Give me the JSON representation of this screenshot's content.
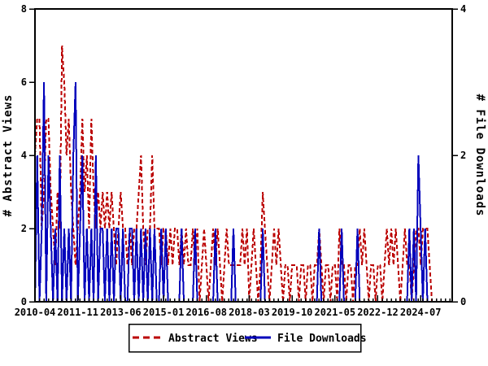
{
  "window": {
    "background": "#ffffff",
    "axis_color": "#000000"
  },
  "chart_data": {
    "type": "line",
    "title": "",
    "grid": false,
    "legend_position": "bottom-center",
    "x_axis": {
      "start_month": "2010-04",
      "end_month": "2025-09",
      "tick_labels": [
        "2010-04",
        "2011-11",
        "2013-06",
        "2015-01",
        "2016-08",
        "2018-03",
        "2019-10",
        "2021-05",
        "2022-12",
        "2024-07"
      ],
      "major_tick_interval_months": 19,
      "minor_tick_interval_months": 2
    },
    "left_axis": {
      "title": "# Abstract Views",
      "min": 0,
      "max": 8,
      "tick_values": [
        0,
        2,
        4,
        6,
        8
      ]
    },
    "right_axis": {
      "title": "# File Downloads",
      "min": 0,
      "max": 4,
      "tick_values": [
        0,
        2,
        4
      ]
    },
    "series": [
      {
        "name": "Abstract Views",
        "axis": "left",
        "color": "#bb0000",
        "line_style": "dashed",
        "values": [
          4,
          5,
          5,
          2,
          3,
          5,
          5,
          3,
          2,
          1,
          3,
          2,
          7,
          6,
          4,
          5,
          3,
          2,
          1,
          2,
          3,
          5,
          3,
          4,
          2,
          5,
          3,
          2,
          3,
          2,
          3,
          2,
          3,
          2,
          3,
          2,
          1,
          2,
          3,
          2,
          2,
          1,
          2,
          1,
          2,
          2,
          3,
          4,
          2,
          1,
          2,
          2,
          4,
          2,
          2,
          2,
          1,
          2,
          2,
          1,
          2,
          1,
          2,
          2,
          1,
          2,
          1,
          2,
          1,
          1,
          2,
          1,
          2,
          0,
          1,
          2,
          1,
          0,
          1,
          2,
          1,
          2,
          1,
          0,
          1,
          2,
          1,
          1,
          1,
          1,
          1,
          1,
          2,
          1,
          2,
          0,
          1,
          2,
          1,
          0,
          1,
          3,
          2,
          1,
          0,
          1,
          2,
          1,
          2,
          1,
          0,
          1,
          1,
          0,
          1,
          1,
          1,
          0,
          1,
          1,
          0,
          1,
          1,
          0,
          1,
          1,
          2,
          1,
          0,
          1,
          1,
          0,
          1,
          1,
          0,
          2,
          1,
          1,
          0,
          1,
          1,
          0,
          1,
          1,
          2,
          1,
          2,
          1,
          0,
          1,
          1,
          0,
          1,
          1,
          0,
          1,
          2,
          1,
          2,
          1,
          2,
          1,
          0,
          1,
          2,
          1,
          1,
          0,
          1,
          2,
          2,
          1,
          2,
          2,
          2,
          1,
          0,
          0,
          0,
          0,
          0,
          0,
          0,
          0,
          0,
          0
        ]
      },
      {
        "name": "File Downloads",
        "axis": "right",
        "color": "#0000bb",
        "line_style": "solid",
        "values": [
          0,
          2,
          0,
          1,
          3,
          0,
          2,
          1,
          0,
          1,
          0,
          2,
          0,
          1,
          0,
          1,
          0,
          2,
          3,
          0,
          1,
          2,
          0,
          1,
          0,
          1,
          0,
          2,
          0,
          1,
          1,
          0,
          1,
          0,
          1,
          0,
          1,
          1,
          0,
          1,
          0,
          0,
          1,
          1,
          0,
          1,
          0,
          1,
          0,
          1,
          0,
          1,
          0,
          1,
          0,
          0,
          1,
          0,
          1,
          0,
          0,
          0,
          0,
          0,
          0,
          1,
          0,
          0,
          0,
          0,
          0,
          1,
          0,
          0,
          0,
          0,
          0,
          0,
          0,
          0,
          1,
          0,
          0,
          0,
          0,
          0,
          0,
          0,
          1,
          0,
          0,
          0,
          0,
          0,
          0,
          0,
          0,
          0,
          0,
          0,
          0,
          1,
          0,
          0,
          0,
          0,
          0,
          0,
          0,
          0,
          0,
          0,
          0,
          0,
          0,
          0,
          0,
          0,
          0,
          0,
          0,
          0,
          0,
          0,
          0,
          0,
          1,
          0,
          0,
          0,
          0,
          0,
          0,
          0,
          0,
          0,
          1,
          0,
          0,
          0,
          0,
          0,
          0,
          1,
          0,
          0,
          0,
          0,
          0,
          0,
          0,
          0,
          0,
          0,
          0,
          0,
          0,
          0,
          0,
          0,
          0,
          0,
          0,
          0,
          0,
          0,
          1,
          0,
          1,
          0,
          2,
          1,
          0,
          1,
          0,
          0,
          0,
          0,
          0,
          0,
          0,
          0,
          0,
          0,
          0,
          0
        ]
      }
    ]
  },
  "legend": {
    "items": [
      {
        "label": "Abstract Views",
        "color": "#bb0000",
        "style": "dashed"
      },
      {
        "label": "File Downloads",
        "color": "#0000bb",
        "style": "solid"
      }
    ]
  }
}
